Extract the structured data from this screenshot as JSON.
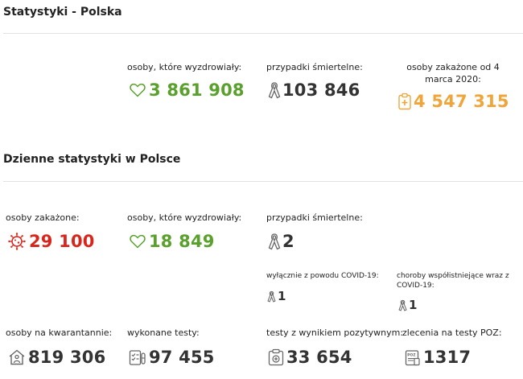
{
  "colors": {
    "green": "#5aa02c",
    "dark": "#333333",
    "red": "#d9261c",
    "orange": "#efa53a",
    "gray": "#666666"
  },
  "section_total": {
    "title": "Statystyki - Polska",
    "recovered": {
      "label": "osoby, które wyzdrowiały:",
      "value": "3 861 908",
      "icon": "heart-icon"
    },
    "deaths": {
      "label": "przypadki śmiertelne:",
      "value": "103 846",
      "icon": "ribbon-icon"
    },
    "infected": {
      "label": "osoby zakażone od 4 marca 2020:",
      "value": "4 547 315",
      "icon": "clipboard-medical-icon"
    }
  },
  "section_daily": {
    "title": "Dzienne statystyki w Polsce",
    "infected": {
      "label": "osoby zakażone:",
      "value": "29 100",
      "icon": "virus-icon"
    },
    "recovered": {
      "label": "osoby, które wyzdrowiały:",
      "value": "18 849",
      "icon": "heart-icon"
    },
    "deaths": {
      "label": "przypadki śmiertelne:",
      "value": "2",
      "icon": "ribbon-icon"
    },
    "deaths_covid_only": {
      "label": "wyłącznie z powodu COVID-19:",
      "value": "1",
      "icon": "ribbon-icon"
    },
    "deaths_comorbidities": {
      "label": "choroby współistniejące wraz z COVID-19:",
      "value": "1",
      "icon": "ribbon-icon"
    },
    "quarantine": {
      "label": "osoby na kwarantannie:",
      "value": "819 306",
      "icon": "house-person-icon"
    },
    "tests": {
      "label": "wykonane testy:",
      "value": "97 455",
      "icon": "test-checklist-icon"
    },
    "positive_tests": {
      "label": "testy z wynikiem pozytywnym:",
      "value": "33 654",
      "icon": "positive-test-icon"
    },
    "poz_orders": {
      "label": "zlecenia na testy POZ:",
      "value": "1317",
      "icon": "poz-clipboard-icon"
    }
  }
}
